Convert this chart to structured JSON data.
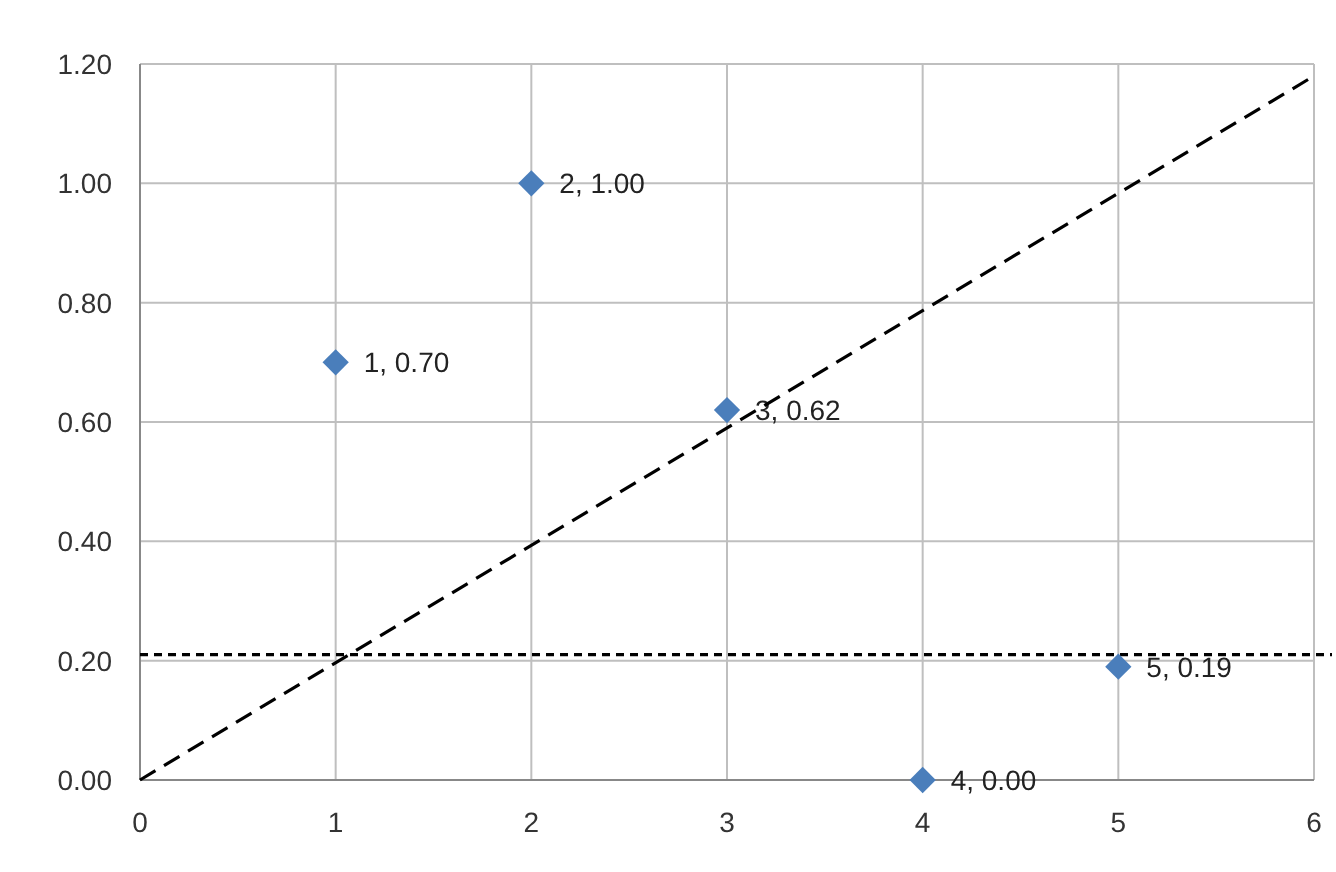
{
  "chart_data": {
    "type": "scatter",
    "marker": "diamond",
    "grid": true,
    "xlim": [
      0,
      6
    ],
    "xticks": [
      0,
      1,
      2,
      3,
      4,
      5,
      6
    ],
    "ylim": [
      0,
      1.2
    ],
    "yticks": [
      {
        "value": 0,
        "label": "0.00"
      },
      {
        "value": 0.2,
        "label": "0.20"
      },
      {
        "value": 0.4,
        "label": "0.40"
      },
      {
        "value": 0.6,
        "label": "0.60"
      },
      {
        "value": 0.8,
        "label": "0.80"
      },
      {
        "value": 1,
        "label": "1.00"
      },
      {
        "value": 1.2,
        "label": "1.20"
      }
    ],
    "series": [
      {
        "color": "#4a7ebb",
        "x": [
          1,
          2,
          3,
          4,
          5
        ],
        "values": [
          0.7,
          1.0,
          0.62,
          0.0,
          0.19
        ],
        "value_labels": [
          "1, 0.70",
          "2, 1.00",
          "3, 0.62",
          "4, 0.00",
          "5, 0.19"
        ]
      },
      {
        "type": "line",
        "color": "#000000",
        "line_style": "dashed",
        "marker": "none",
        "x": [
          0,
          6
        ],
        "values": [
          0,
          1.18
        ]
      }
    ],
    "ref_lines": [
      {
        "axis": "y",
        "value": 0.21,
        "color": "#000000",
        "line_style": "dotted"
      }
    ]
  }
}
